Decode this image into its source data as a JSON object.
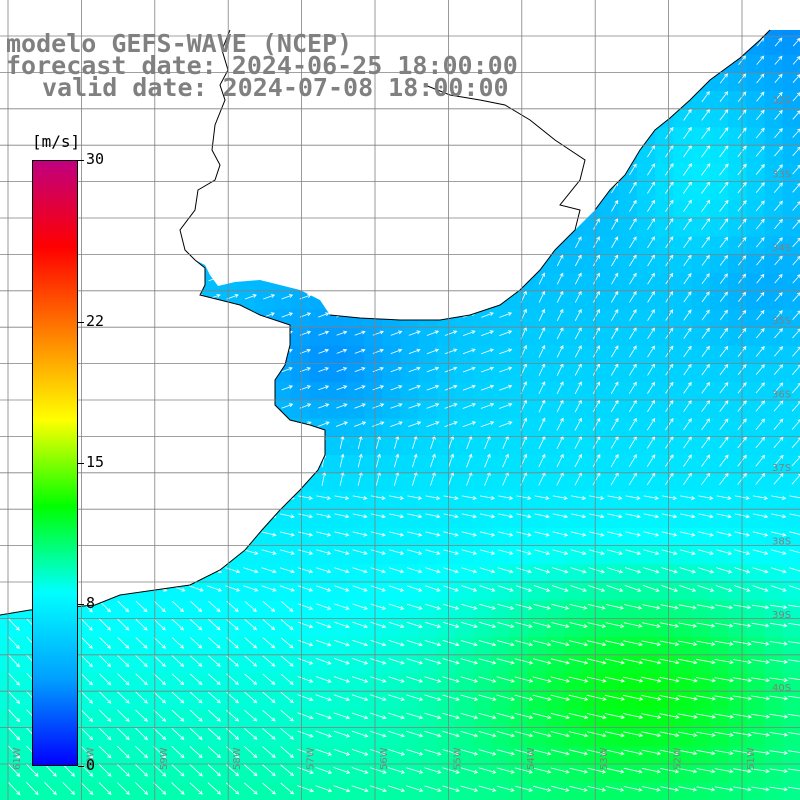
{
  "title": {
    "line1": "modelo GEFS-WAVE (NCEP)",
    "line2": "forecast date: 2024-06-25 18:00:00",
    "line3": "valid date: 2024-07-08 18:00:00"
  },
  "colorbar": {
    "unit": "[m/s]",
    "ticks": [
      {
        "label": "30",
        "value": 30
      },
      {
        "label": "22",
        "value": 22
      },
      {
        "label": "15",
        "value": 15
      },
      {
        "label": "8",
        "value": 8
      },
      {
        "label": "0",
        "value": 0
      }
    ],
    "min": 0,
    "max": 30,
    "colors": [
      "#0000ff",
      "#00a0ff",
      "#00ffff",
      "#00ff00",
      "#ffff00",
      "#ff8000",
      "#ff0000",
      "#c0007f"
    ]
  },
  "map": {
    "lon_labels": [
      "61W",
      "60W",
      "59W",
      "58W",
      "57W",
      "56W",
      "55W",
      "54W",
      "53W",
      "52W",
      "51W"
    ],
    "lat_labels": [
      "32S",
      "33S",
      "34S",
      "35S",
      "36S",
      "37S",
      "38S",
      "39S",
      "40S"
    ],
    "land_color": "#ffffff",
    "grid_color": "#808080",
    "coast_color": "#000000",
    "arrow_color": "#ffffff"
  }
}
